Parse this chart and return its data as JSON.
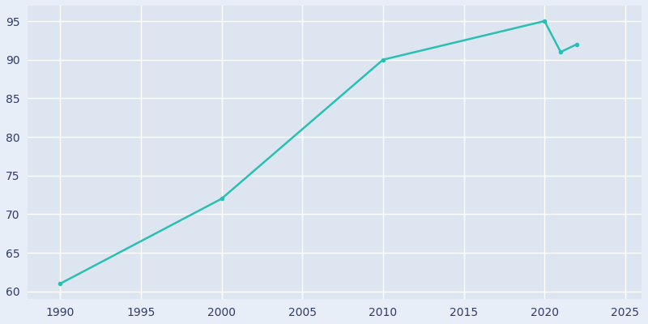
{
  "years": [
    1990,
    2000,
    2010,
    2020,
    2021,
    2022
  ],
  "population": [
    61,
    72,
    90,
    95,
    91,
    92
  ],
  "line_color": "#2BBFB3",
  "marker_color": "#2BBFB3",
  "background_color": "#E8EEF7",
  "axes_background_color": "#DCE5F0",
  "grid_color": "#FFFFFF",
  "text_color": "#2D3A6B",
  "xlim": [
    1988,
    2026
  ],
  "ylim": [
    59,
    97
  ],
  "xticks": [
    1990,
    1995,
    2000,
    2005,
    2010,
    2015,
    2020,
    2025
  ],
  "yticks": [
    60,
    65,
    70,
    75,
    80,
    85,
    90,
    95
  ],
  "line_width": 1.8,
  "marker_size": 4
}
